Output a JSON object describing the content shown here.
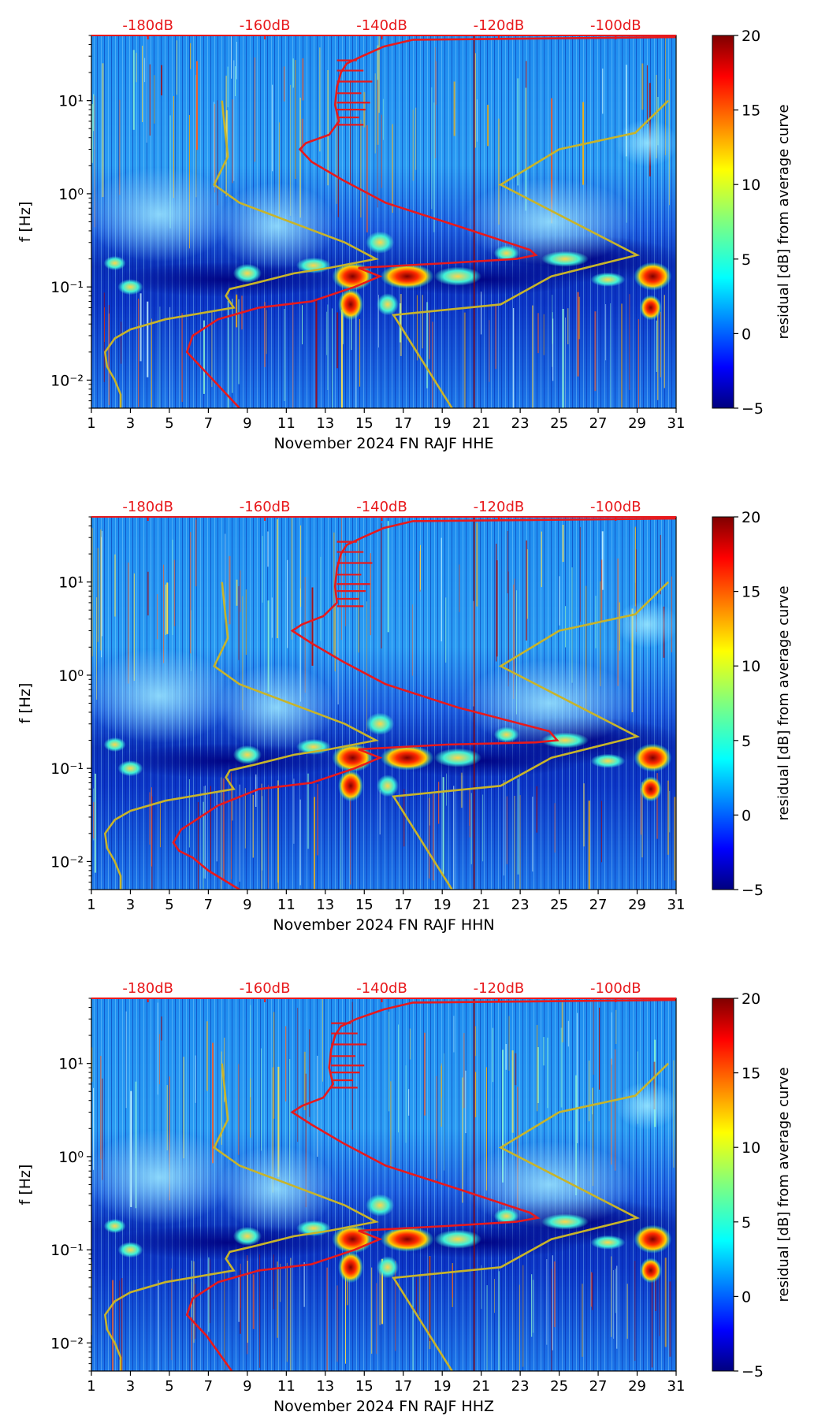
{
  "chart_data": [
    {
      "type": "heatmap",
      "xlabel": "November 2024 FN RAJF  HHE",
      "ylabel": "f [Hz]",
      "x_ticks": [
        "1",
        "3",
        "5",
        "7",
        "9",
        "11",
        "13",
        "15",
        "17",
        "19",
        "21",
        "23",
        "25",
        "27",
        "29",
        "31"
      ],
      "xlim": [
        1,
        31
      ],
      "ylim": [
        0.005,
        50
      ],
      "y_scale": "log",
      "y_ticks": [
        "10⁻²",
        "10⁻¹",
        "10⁰",
        "10¹"
      ],
      "top_axis_ticks": [
        "-180dB",
        "-160dB",
        "-140dB",
        "-120dB",
        "-100dB"
      ],
      "colorbar": {
        "label": "residual [dB] from average curve",
        "range": [
          -5,
          20
        ],
        "ticks": [
          "−5",
          "0",
          "5",
          "10",
          "15",
          "20"
        ]
      },
      "overlay_lines": [
        {
          "name": "average PSD",
          "color": "#e8191c"
        },
        {
          "name": "noise model",
          "color": "#c8b42a"
        }
      ],
      "red_curve_x": [
        8.6,
        6.9,
        5.9,
        6.2,
        7.5,
        9.6,
        12.3,
        14.5,
        15.8,
        14.7,
        19.2,
        22.8,
        23.8,
        23.5,
        19.8,
        16.1,
        13.9,
        12.3,
        11.7,
        12.0,
        13.2,
        13.7,
        13.5,
        13.6,
        13.8,
        14.1,
        14.9,
        16.0,
        17.5,
        31
      ],
      "red_curve_y": [
        0.005,
        0.012,
        0.02,
        0.03,
        0.045,
        0.06,
        0.07,
        0.1,
        0.13,
        0.16,
        0.18,
        0.2,
        0.22,
        0.25,
        0.45,
        0.8,
        1.4,
        2.2,
        3,
        3.5,
        4.3,
        6,
        9,
        14,
        20,
        25,
        30,
        38,
        45,
        48
      ],
      "model_curve_x": [
        2.5,
        2.5,
        2.2,
        1.8,
        1.7,
        2.2,
        3.0,
        4.8,
        8.3,
        7.9,
        8.1,
        9.4,
        11.4,
        13.2,
        15.6,
        14.0,
        8.6,
        7.3,
        8.0,
        7.7,
        19.5,
        16.5,
        22.0,
        24.6,
        29.0,
        22.0,
        25.0,
        28.9,
        30.6
      ],
      "model_curve_y": [
        0.005,
        0.007,
        0.01,
        0.014,
        0.02,
        0.028,
        0.035,
        0.045,
        0.06,
        0.08,
        0.095,
        0.11,
        0.14,
        0.16,
        0.2,
        0.3,
        0.8,
        1.25,
        2.5,
        10,
        0.005,
        0.05,
        0.065,
        0.13,
        0.22,
        1.25,
        3.0,
        4.5,
        10
      ]
    },
    {
      "type": "heatmap",
      "xlabel": "November 2024 FN RAJF  HHN",
      "ylabel": "f [Hz]",
      "x_ticks": [
        "1",
        "3",
        "5",
        "7",
        "9",
        "11",
        "13",
        "15",
        "17",
        "19",
        "21",
        "23",
        "25",
        "27",
        "29",
        "31"
      ],
      "xlim": [
        1,
        31
      ],
      "ylim": [
        0.005,
        50
      ],
      "y_scale": "log",
      "y_ticks": [
        "10⁻²",
        "10⁻¹",
        "10⁰",
        "10¹"
      ],
      "top_axis_ticks": [
        "-180dB",
        "-160dB",
        "-140dB",
        "-120dB",
        "-100dB"
      ],
      "colorbar": {
        "label": "residual [dB] from average curve",
        "range": [
          -5,
          20
        ],
        "ticks": [
          "−5",
          "0",
          "5",
          "10",
          "15",
          "20"
        ]
      },
      "overlay_lines": [
        {
          "name": "average PSD",
          "color": "#e8191c"
        },
        {
          "name": "noise model",
          "color": "#c8b42a"
        }
      ],
      "red_curve_x": [
        8.6,
        7.0,
        6.2,
        5.5,
        5.2,
        5.6,
        7.5,
        9.6,
        12.3,
        14.5,
        15.8,
        14.7,
        19.2,
        23.8,
        24.9,
        24.5,
        19.8,
        16.1,
        13.9,
        12.3,
        11.3,
        11.8,
        12.9,
        13.6,
        13.5,
        13.6,
        13.8,
        14.1,
        14.9,
        16.0,
        17.5,
        31
      ],
      "red_curve_y": [
        0.005,
        0.008,
        0.011,
        0.013,
        0.016,
        0.022,
        0.04,
        0.06,
        0.07,
        0.1,
        0.13,
        0.16,
        0.18,
        0.19,
        0.2,
        0.25,
        0.45,
        0.8,
        1.4,
        2.2,
        3,
        3.5,
        4.3,
        6,
        9,
        14,
        20,
        25,
        30,
        38,
        45,
        48
      ],
      "model_curve_x": [
        2.5,
        2.5,
        2.2,
        1.8,
        1.7,
        2.2,
        3.0,
        4.8,
        8.3,
        7.9,
        8.1,
        9.4,
        11.4,
        13.2,
        15.6,
        14.0,
        8.6,
        7.3,
        8.0,
        7.7,
        19.5,
        16.5,
        22.0,
        24.6,
        29.0,
        22.0,
        25.0,
        28.9,
        30.6
      ],
      "model_curve_y": [
        0.005,
        0.007,
        0.01,
        0.014,
        0.02,
        0.028,
        0.035,
        0.045,
        0.06,
        0.08,
        0.095,
        0.11,
        0.14,
        0.16,
        0.2,
        0.3,
        0.8,
        1.25,
        2.5,
        10,
        0.005,
        0.05,
        0.065,
        0.13,
        0.22,
        1.25,
        3.0,
        4.5,
        10
      ]
    },
    {
      "type": "heatmap",
      "xlabel": "November 2024 FN RAJF  HHZ",
      "ylabel": "f [Hz]",
      "x_ticks": [
        "1",
        "3",
        "5",
        "7",
        "9",
        "11",
        "13",
        "15",
        "17",
        "19",
        "21",
        "23",
        "25",
        "27",
        "29",
        "31"
      ],
      "xlim": [
        1,
        31
      ],
      "ylim": [
        0.005,
        50
      ],
      "y_scale": "log",
      "y_ticks": [
        "10⁻²",
        "10⁻¹",
        "10⁰",
        "10¹"
      ],
      "top_axis_ticks": [
        "-180dB",
        "-160dB",
        "-140dB",
        "-120dB",
        "-100dB"
      ],
      "colorbar": {
        "label": "residual [dB] from average curve",
        "range": [
          -5,
          20
        ],
        "ticks": [
          "−5",
          "0",
          "5",
          "10",
          "15",
          "20"
        ]
      },
      "overlay_lines": [
        {
          "name": "average PSD",
          "color": "#e8191c"
        },
        {
          "name": "noise model",
          "color": "#c8b42a"
        }
      ],
      "red_curve_x": [
        8.2,
        6.9,
        5.9,
        6.2,
        7.5,
        9.6,
        12.3,
        14.5,
        15.8,
        14.7,
        19.2,
        22.8,
        23.9,
        23.5,
        19.8,
        16.1,
        13.9,
        12.3,
        11.3,
        11.8,
        12.9,
        13.4,
        13.2,
        13.3,
        13.5,
        13.8,
        14.6,
        16.0,
        17.5,
        31
      ],
      "red_curve_y": [
        0.005,
        0.012,
        0.02,
        0.03,
        0.045,
        0.06,
        0.07,
        0.1,
        0.13,
        0.16,
        0.18,
        0.2,
        0.22,
        0.25,
        0.45,
        0.8,
        1.4,
        2.2,
        3,
        3.5,
        4.3,
        6,
        9,
        14,
        20,
        25,
        30,
        38,
        45,
        48
      ],
      "model_curve_x": [
        2.5,
        2.5,
        2.2,
        1.8,
        1.7,
        2.2,
        3.0,
        4.8,
        8.3,
        7.9,
        8.1,
        9.4,
        11.4,
        13.2,
        15.6,
        14.0,
        8.6,
        7.3,
        8.0,
        7.7,
        19.5,
        16.5,
        22.0,
        24.6,
        29.0,
        22.0,
        25.0,
        28.9,
        30.6
      ],
      "model_curve_y": [
        0.005,
        0.007,
        0.01,
        0.014,
        0.02,
        0.028,
        0.035,
        0.045,
        0.06,
        0.08,
        0.095,
        0.11,
        0.14,
        0.16,
        0.2,
        0.3,
        0.8,
        1.25,
        2.5,
        10,
        0.005,
        0.05,
        0.065,
        0.13,
        0.22,
        1.25,
        3.0,
        4.5,
        10
      ]
    }
  ]
}
